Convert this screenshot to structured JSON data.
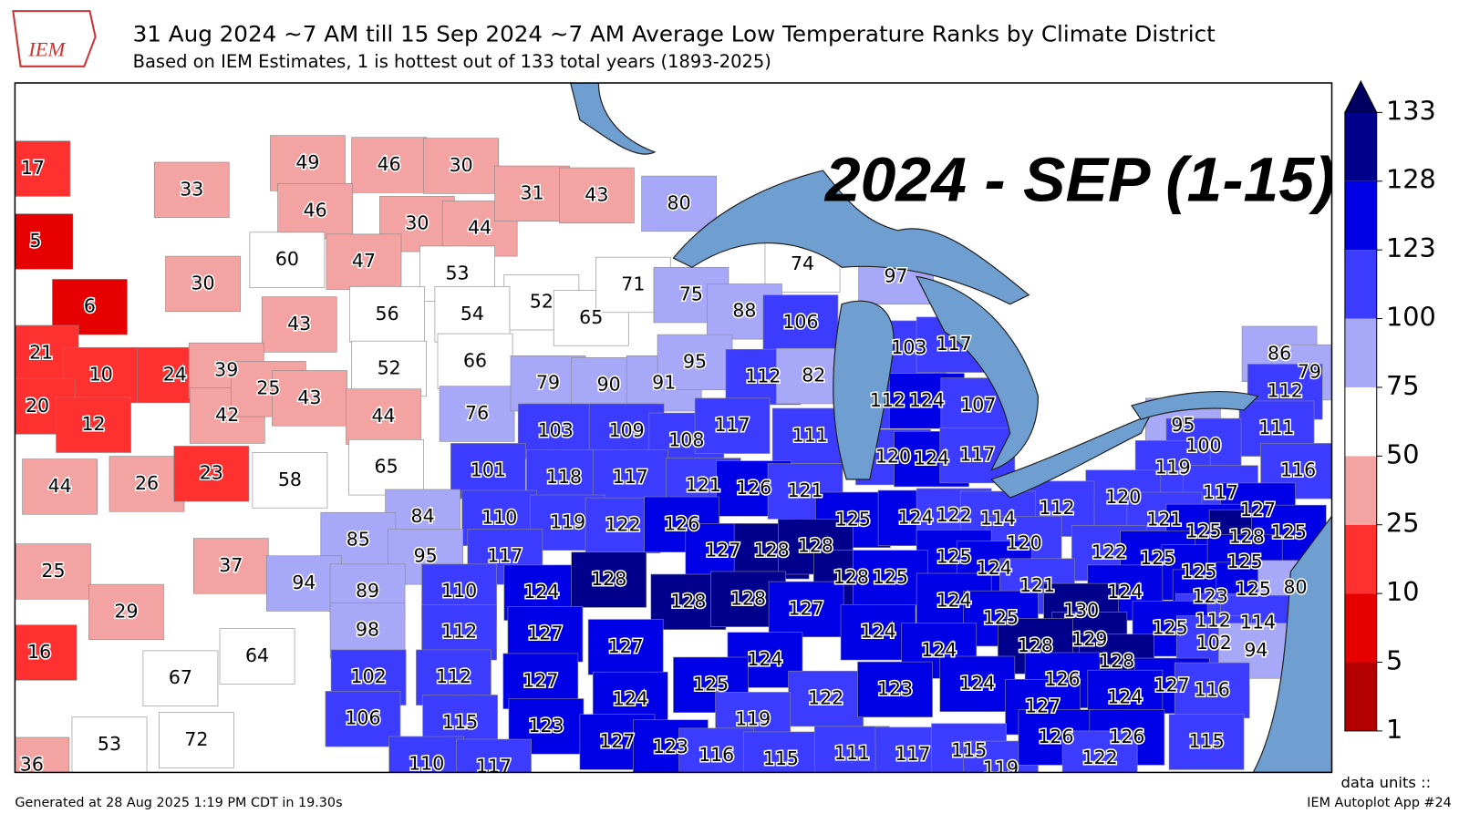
{
  "header": {
    "logo": "IEM",
    "title": "31 Aug 2024 ~7 AM till 15 Sep 2024 ~7 AM Average Low Temperature Ranks by Climate District",
    "subtitle": "Based on IEM Estimates, 1 is hottest out of 133 total years (1893-2025)"
  },
  "overlay_label": "2024 - SEP (1-15)",
  "districts": [
    17,
    33,
    5,
    30,
    6,
    49,
    46,
    30,
    46,
    30,
    44,
    60,
    47,
    53,
    31,
    43,
    80,
    52,
    65,
    71,
    56,
    54,
    43,
    66,
    52,
    74,
    97,
    75,
    88,
    106,
    103,
    117,
    21,
    10,
    24,
    39,
    20,
    12,
    42,
    25,
    43,
    44,
    76,
    79,
    90,
    91,
    95,
    112,
    82,
    86,
    79,
    112,
    111,
    95,
    100,
    116,
    119,
    112,
    124,
    107,
    103,
    109,
    108,
    117,
    111,
    44,
    26,
    23,
    58,
    65,
    101,
    118,
    117,
    121,
    126,
    121,
    120,
    124,
    117,
    120,
    117,
    127,
    121,
    125,
    128,
    125,
    112,
    84,
    110,
    119,
    122,
    126,
    125,
    124,
    122,
    114,
    85,
    95,
    117,
    127,
    128,
    128,
    120,
    125,
    124,
    122,
    125,
    125,
    125,
    25,
    37,
    94,
    89,
    110,
    124,
    128,
    128,
    128,
    128,
    125,
    127,
    124,
    121,
    124,
    123,
    125,
    80,
    29,
    98,
    112,
    127,
    130,
    125,
    112,
    114,
    125,
    102,
    94,
    129,
    128,
    128,
    16,
    67,
    64,
    102,
    112,
    127,
    127,
    124,
    124,
    124,
    125,
    126,
    127,
    116,
    124,
    124,
    122,
    123,
    124,
    127,
    53,
    72,
    106,
    115,
    123,
    119,
    36,
    110,
    117,
    127,
    123,
    116,
    115,
    111,
    117,
    115,
    119,
    126,
    126,
    122,
    115
  ],
  "colorbar": {
    "ticks": [
      1,
      5,
      10,
      25,
      50,
      75,
      100,
      123,
      128,
      133
    ],
    "colors": [
      "#b30000",
      "#e60000",
      "#ff3030",
      "#f4a3a3",
      "#ffffff",
      "#a8a8f8",
      "#3c3cff",
      "#0000e6",
      "#00008c",
      "#000060"
    ]
  },
  "footer": {
    "generated": "Generated at 28 Aug 2025 1:19 PM CDT in 19.30s",
    "data_units": "data units ::",
    "app": "IEM Autoplot App #24"
  }
}
